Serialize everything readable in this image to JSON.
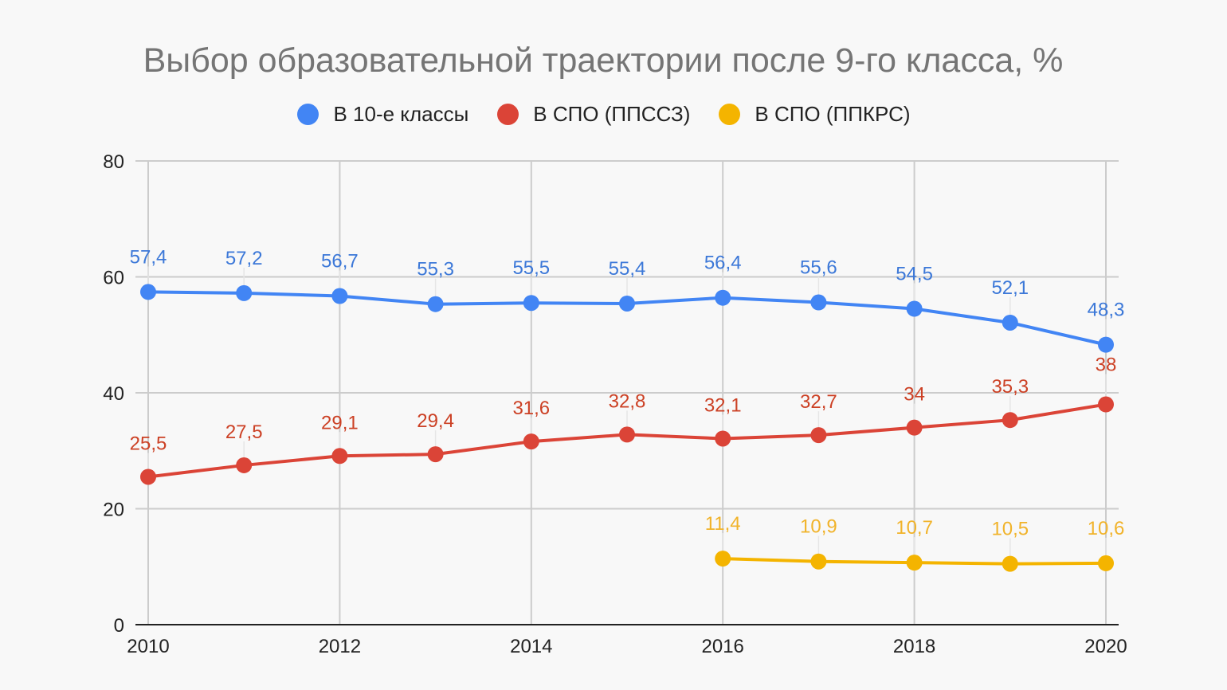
{
  "chart_data": {
    "type": "line",
    "title": "Выбор образовательной траектории после 9-го класса, %",
    "xlabel": "",
    "ylabel": "",
    "xlim": [
      2010,
      2020
    ],
    "ylim": [
      0,
      80
    ],
    "yticks": [
      0,
      20,
      40,
      60,
      80
    ],
    "ytick_labels": [
      "0",
      "20",
      "40",
      "60",
      "80"
    ],
    "xticks": [
      2010,
      2012,
      2014,
      2016,
      2018,
      2020
    ],
    "xtick_labels": [
      "2010",
      "2012",
      "2014",
      "2016",
      "2018",
      "2020"
    ],
    "grid": true,
    "legend_position": "top",
    "series": [
      {
        "name": "В 10-е классы",
        "color": "#4285f4",
        "label_color": "#3c78d8",
        "x": [
          2010,
          2011,
          2012,
          2013,
          2014,
          2015,
          2016,
          2017,
          2018,
          2019,
          2020
        ],
        "values": [
          57.4,
          57.2,
          56.7,
          55.3,
          55.5,
          55.4,
          56.4,
          55.6,
          54.5,
          52.1,
          48.3
        ],
        "labels": [
          "57,4",
          "57,2",
          "56,7",
          "55,3",
          "55,5",
          "55,4",
          "56,4",
          "55,6",
          "54,5",
          "52,1",
          "48,3"
        ]
      },
      {
        "name": "В СПО (ППССЗ)",
        "color": "#db4437",
        "label_color": "#cc4125",
        "x": [
          2010,
          2011,
          2012,
          2013,
          2014,
          2015,
          2016,
          2017,
          2018,
          2019,
          2020
        ],
        "values": [
          25.5,
          27.5,
          29.1,
          29.4,
          31.6,
          32.8,
          32.1,
          32.7,
          34,
          35.3,
          38
        ],
        "labels": [
          "25,5",
          "27,5",
          "29,1",
          "29,4",
          "31,6",
          "32,8",
          "32,1",
          "32,7",
          "34",
          "35,3",
          "38"
        ]
      },
      {
        "name": "В СПО (ППКРС)",
        "color": "#f4b400",
        "label_color": "#f1b32a",
        "x": [
          2016,
          2017,
          2018,
          2019,
          2020
        ],
        "values": [
          11.4,
          10.9,
          10.7,
          10.5,
          10.6
        ],
        "labels": [
          "11,4",
          "10,9",
          "10,7",
          "10,5",
          "10,6"
        ]
      }
    ]
  }
}
